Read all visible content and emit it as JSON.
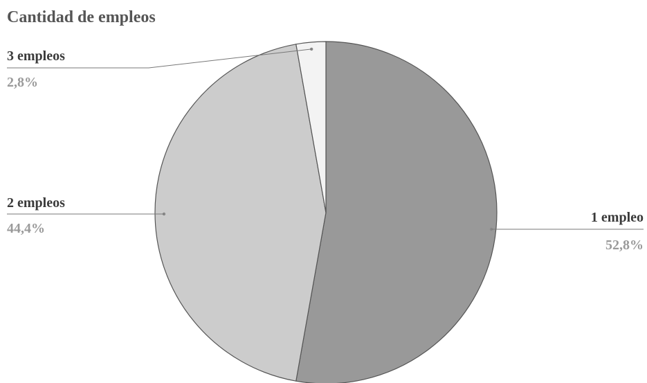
{
  "chart_data": {
    "type": "pie",
    "title": "Cantidad de empleos",
    "categories": [
      "1 empleo",
      "2 empleos",
      "3 empleos"
    ],
    "values": [
      52.8,
      44.4,
      2.8
    ],
    "value_labels": [
      "52,8%",
      "44,4%",
      "2,8%"
    ],
    "colors": [
      "#999999",
      "#cccccc",
      "#f3f3f3"
    ],
    "start_angle": "12 o'clock",
    "direction": "clockwise",
    "legend": "none (labels with leader lines)"
  }
}
